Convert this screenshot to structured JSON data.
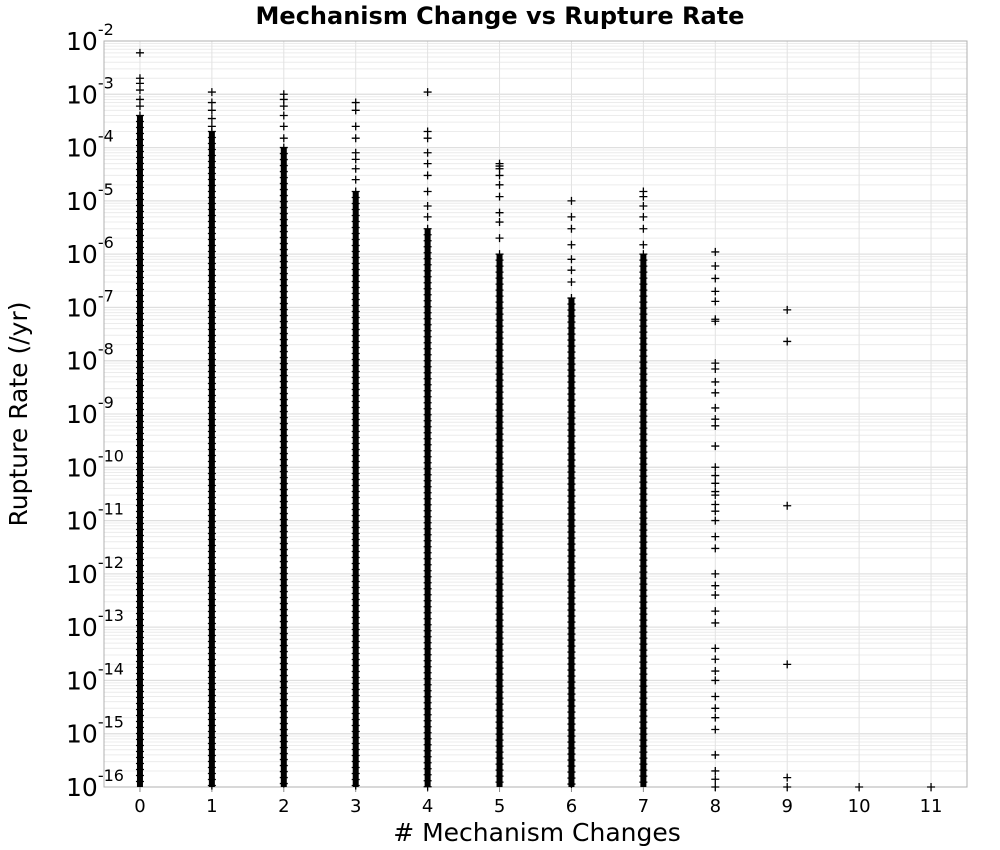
{
  "chart_data": {
    "type": "scatter",
    "title": "Mechanism Change vs Rupture Rate",
    "xlabel": "# Mechanism Changes",
    "ylabel": "Rupture Rate (/yr)",
    "x_ticks": [
      "0",
      "1",
      "2",
      "3",
      "4",
      "5",
      "6",
      "7",
      "8",
      "9",
      "10",
      "11"
    ],
    "y_ticks": [
      {
        "base": "10",
        "exp": "-16"
      },
      {
        "base": "10",
        "exp": "-15"
      },
      {
        "base": "10",
        "exp": "-14"
      },
      {
        "base": "10",
        "exp": "-13"
      },
      {
        "base": "10",
        "exp": "-12"
      },
      {
        "base": "10",
        "exp": "-11"
      },
      {
        "base": "10",
        "exp": "-10"
      },
      {
        "base": "10",
        "exp": "-9"
      },
      {
        "base": "10",
        "exp": "-8"
      },
      {
        "base": "10",
        "exp": "-7"
      },
      {
        "base": "10",
        "exp": "-6"
      },
      {
        "base": "10",
        "exp": "-5"
      },
      {
        "base": "10",
        "exp": "-4"
      },
      {
        "base": "10",
        "exp": "-3"
      },
      {
        "base": "10",
        "exp": "-2"
      }
    ],
    "xlim": [
      -0.5,
      11.5
    ],
    "ylim": [
      1e-16,
      0.01
    ],
    "y_scale": "log",
    "grid": true,
    "marker": "+",
    "marker_color": "#000000",
    "series": [
      {
        "x": 0,
        "dense_range": [
          1e-16,
          0.0004
        ],
        "points": [
          0.006,
          0.002,
          0.0016,
          0.0012,
          0.0008,
          0.0006
        ]
      },
      {
        "x": 1,
        "dense_range": [
          1e-16,
          0.0002
        ],
        "points": [
          0.0011,
          0.0007,
          0.0005,
          0.00035,
          0.00025
        ]
      },
      {
        "x": 2,
        "dense_range": [
          1e-16,
          0.0001
        ],
        "points": [
          0.001,
          0.0008,
          0.0006,
          0.0004,
          0.00025,
          0.00015
        ]
      },
      {
        "x": 3,
        "dense_range": [
          1e-16,
          1.5e-05
        ],
        "points": [
          0.0007,
          0.0005,
          0.00025,
          0.00015,
          8e-05,
          6e-05,
          4e-05,
          2.5e-05
        ]
      },
      {
        "x": 4,
        "dense_range": [
          1e-16,
          3e-06
        ],
        "points": [
          0.0011,
          0.0002,
          0.00015,
          8e-05,
          5e-05,
          3e-05,
          1.5e-05,
          8e-06,
          5e-06
        ]
      },
      {
        "x": 5,
        "dense_range": [
          1e-16,
          1e-06
        ],
        "points": [
          5e-05,
          4.5e-05,
          4e-05,
          3e-05,
          2e-05,
          1.2e-05,
          6e-06,
          4e-06,
          2e-06
        ]
      },
      {
        "x": 6,
        "dense_range": [
          1e-16,
          1.5e-07
        ],
        "points": [
          1e-05,
          5e-06,
          3e-06,
          1.5e-06,
          8e-07,
          5e-07,
          3e-07
        ]
      },
      {
        "x": 7,
        "dense_range": [
          1e-16,
          1e-06
        ],
        "points": [
          1.5e-05,
          1.2e-05,
          8e-06,
          5e-06,
          3e-06,
          1.5e-06
        ]
      },
      {
        "x": 8,
        "dense_range": null,
        "points": [
          1.1e-06,
          6e-07,
          3.5e-07,
          2e-07,
          1.3e-07,
          6e-08,
          5.5e-08,
          9e-09,
          7e-09,
          4e-09,
          2.5e-09,
          1.3e-09,
          8e-10,
          6e-10,
          2.5e-10,
          1e-10,
          7e-11,
          5e-11,
          3.5e-11,
          3e-11,
          2e-11,
          1.5e-11,
          1e-11,
          5e-12,
          3e-12,
          1e-12,
          6e-13,
          4e-13,
          2e-13,
          1.2e-13,
          4e-14,
          2.5e-14,
          1.5e-14,
          1e-14,
          5e-15,
          3e-15,
          2e-15,
          1.2e-15,
          4e-16,
          2e-16,
          1.4e-16,
          1e-16
        ]
      },
      {
        "x": 9,
        "dense_range": null,
        "points": [
          9e-08,
          2.3e-08,
          1.9e-11,
          2e-14,
          1.5e-16,
          1e-16
        ]
      },
      {
        "x": 10,
        "dense_range": null,
        "points": [
          1e-16
        ]
      },
      {
        "x": 11,
        "dense_range": null,
        "points": [
          1e-16
        ]
      }
    ]
  }
}
